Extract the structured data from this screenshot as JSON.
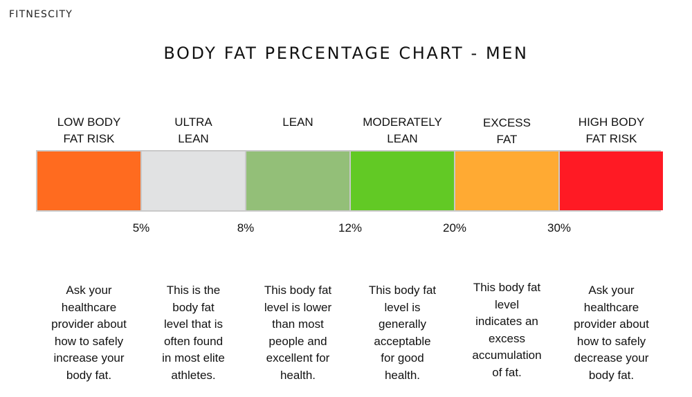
{
  "brand": "FITNESCITY",
  "title": "BODY FAT PERCENTAGE CHART - MEN",
  "chart_data": {
    "type": "bar",
    "orientation": "horizontal-segmented",
    "categories": [
      "LOW BODY FAT RISK",
      "ULTRA LEAN",
      "LEAN",
      "MODERATELY LEAN",
      "EXCESS FAT",
      "HIGH BODY FAT RISK"
    ],
    "thresholds": [
      "5%",
      "8%",
      "12%",
      "20%",
      "30%"
    ],
    "segments": [
      {
        "label_lines": [
          "LOW BODY",
          "FAT RISK"
        ],
        "color": "#ff6b1f",
        "description_lines": [
          "Ask your",
          "healthcare",
          "provider about",
          "how to safely",
          "increase your",
          "body fat."
        ]
      },
      {
        "label_lines": [
          "ULTRA",
          "LEAN"
        ],
        "color": "#e1e2e3",
        "description_lines": [
          "This is the",
          "body fat",
          "level that is",
          "often found",
          "in most elite",
          "athletes."
        ]
      },
      {
        "label_lines": [
          "LEAN"
        ],
        "color": "#93bf78",
        "description_lines": [
          "This body fat",
          "level is lower",
          "than most",
          "people and",
          "excellent for",
          "health."
        ]
      },
      {
        "label_lines": [
          "MODERATELY",
          "LEAN"
        ],
        "color": "#62c925",
        "description_lines": [
          "This body fat",
          "level is",
          "generally",
          "acceptable",
          "for good",
          "health."
        ]
      },
      {
        "label_lines": [
          "EXCESS",
          "FAT"
        ],
        "color": "#ffaa33",
        "description_lines": [
          "This body fat",
          "level",
          "indicates an",
          "excess",
          "accumulation",
          "of fat."
        ]
      },
      {
        "label_lines": [
          "HIGH BODY",
          "FAT RISK"
        ],
        "color": "#ff1a24",
        "description_lines": [
          "Ask your",
          "healthcare",
          "provider about",
          "how to safely",
          "decrease your",
          "body fat."
        ]
      }
    ]
  }
}
